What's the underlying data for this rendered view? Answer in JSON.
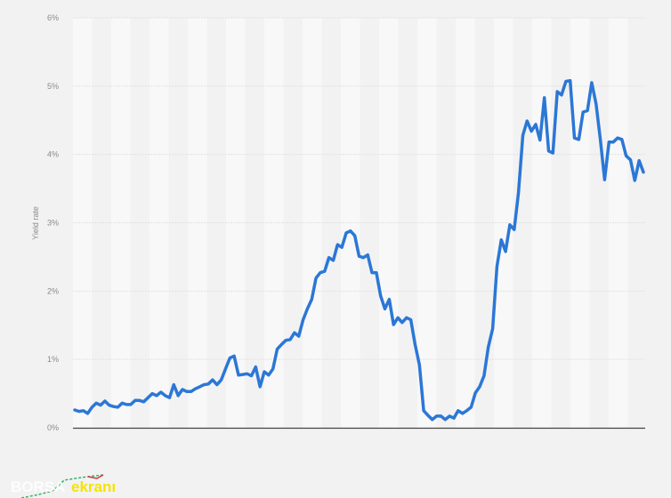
{
  "chart_data": {
    "type": "line",
    "title": "",
    "xlabel": "",
    "ylabel": "Yield rate",
    "ylim": [
      0,
      6
    ],
    "yticks": [
      "0%",
      "1%",
      "2%",
      "3%",
      "4%",
      "5%",
      "6%"
    ],
    "grid": true,
    "legend": "none",
    "colors": {
      "line": "#2b77d6",
      "grid": "#e2e2e2",
      "axis": "#444444",
      "stripe": "#f8f8f8",
      "background": "#f2f2f2"
    },
    "series": [
      {
        "values": [
          0.26,
          0.24,
          0.25,
          0.21,
          0.3,
          0.36,
          0.33,
          0.39,
          0.33,
          0.31,
          0.3,
          0.36,
          0.34,
          0.34,
          0.4,
          0.4,
          0.38,
          0.44,
          0.5,
          0.47,
          0.52,
          0.47,
          0.44,
          0.63,
          0.47,
          0.56,
          0.53,
          0.53,
          0.57,
          0.6,
          0.63,
          0.64,
          0.7,
          0.63,
          0.7,
          0.86,
          1.02,
          1.05,
          0.77,
          0.78,
          0.79,
          0.76,
          0.89,
          0.6,
          0.82,
          0.77,
          0.86,
          1.15,
          1.22,
          1.28,
          1.29,
          1.39,
          1.34,
          1.58,
          1.74,
          1.88,
          2.19,
          2.27,
          2.29,
          2.49,
          2.45,
          2.68,
          2.64,
          2.85,
          2.88,
          2.81,
          2.51,
          2.49,
          2.53,
          2.27,
          2.27,
          1.93,
          1.74,
          1.88,
          1.51,
          1.61,
          1.54,
          1.61,
          1.58,
          1.22,
          0.92,
          0.25,
          0.18,
          0.12,
          0.17,
          0.17,
          0.12,
          0.17,
          0.14,
          0.25,
          0.21,
          0.25,
          0.3,
          0.51,
          0.6,
          0.76,
          1.18,
          1.45,
          2.36,
          2.75,
          2.58,
          2.97,
          2.9,
          3.44,
          4.28,
          4.49,
          4.34,
          4.44,
          4.21,
          4.83,
          4.05,
          4.02,
          4.92,
          4.87,
          5.07,
          5.08,
          4.24,
          4.22,
          4.62,
          4.64,
          5.05,
          4.74,
          4.22,
          3.63,
          4.18,
          4.18,
          4.24,
          4.22,
          3.98,
          3.92,
          3.62,
          3.91,
          3.74
        ]
      }
    ]
  },
  "watermark": {
    "part1": "BORSA",
    "part2": "ekranı"
  }
}
